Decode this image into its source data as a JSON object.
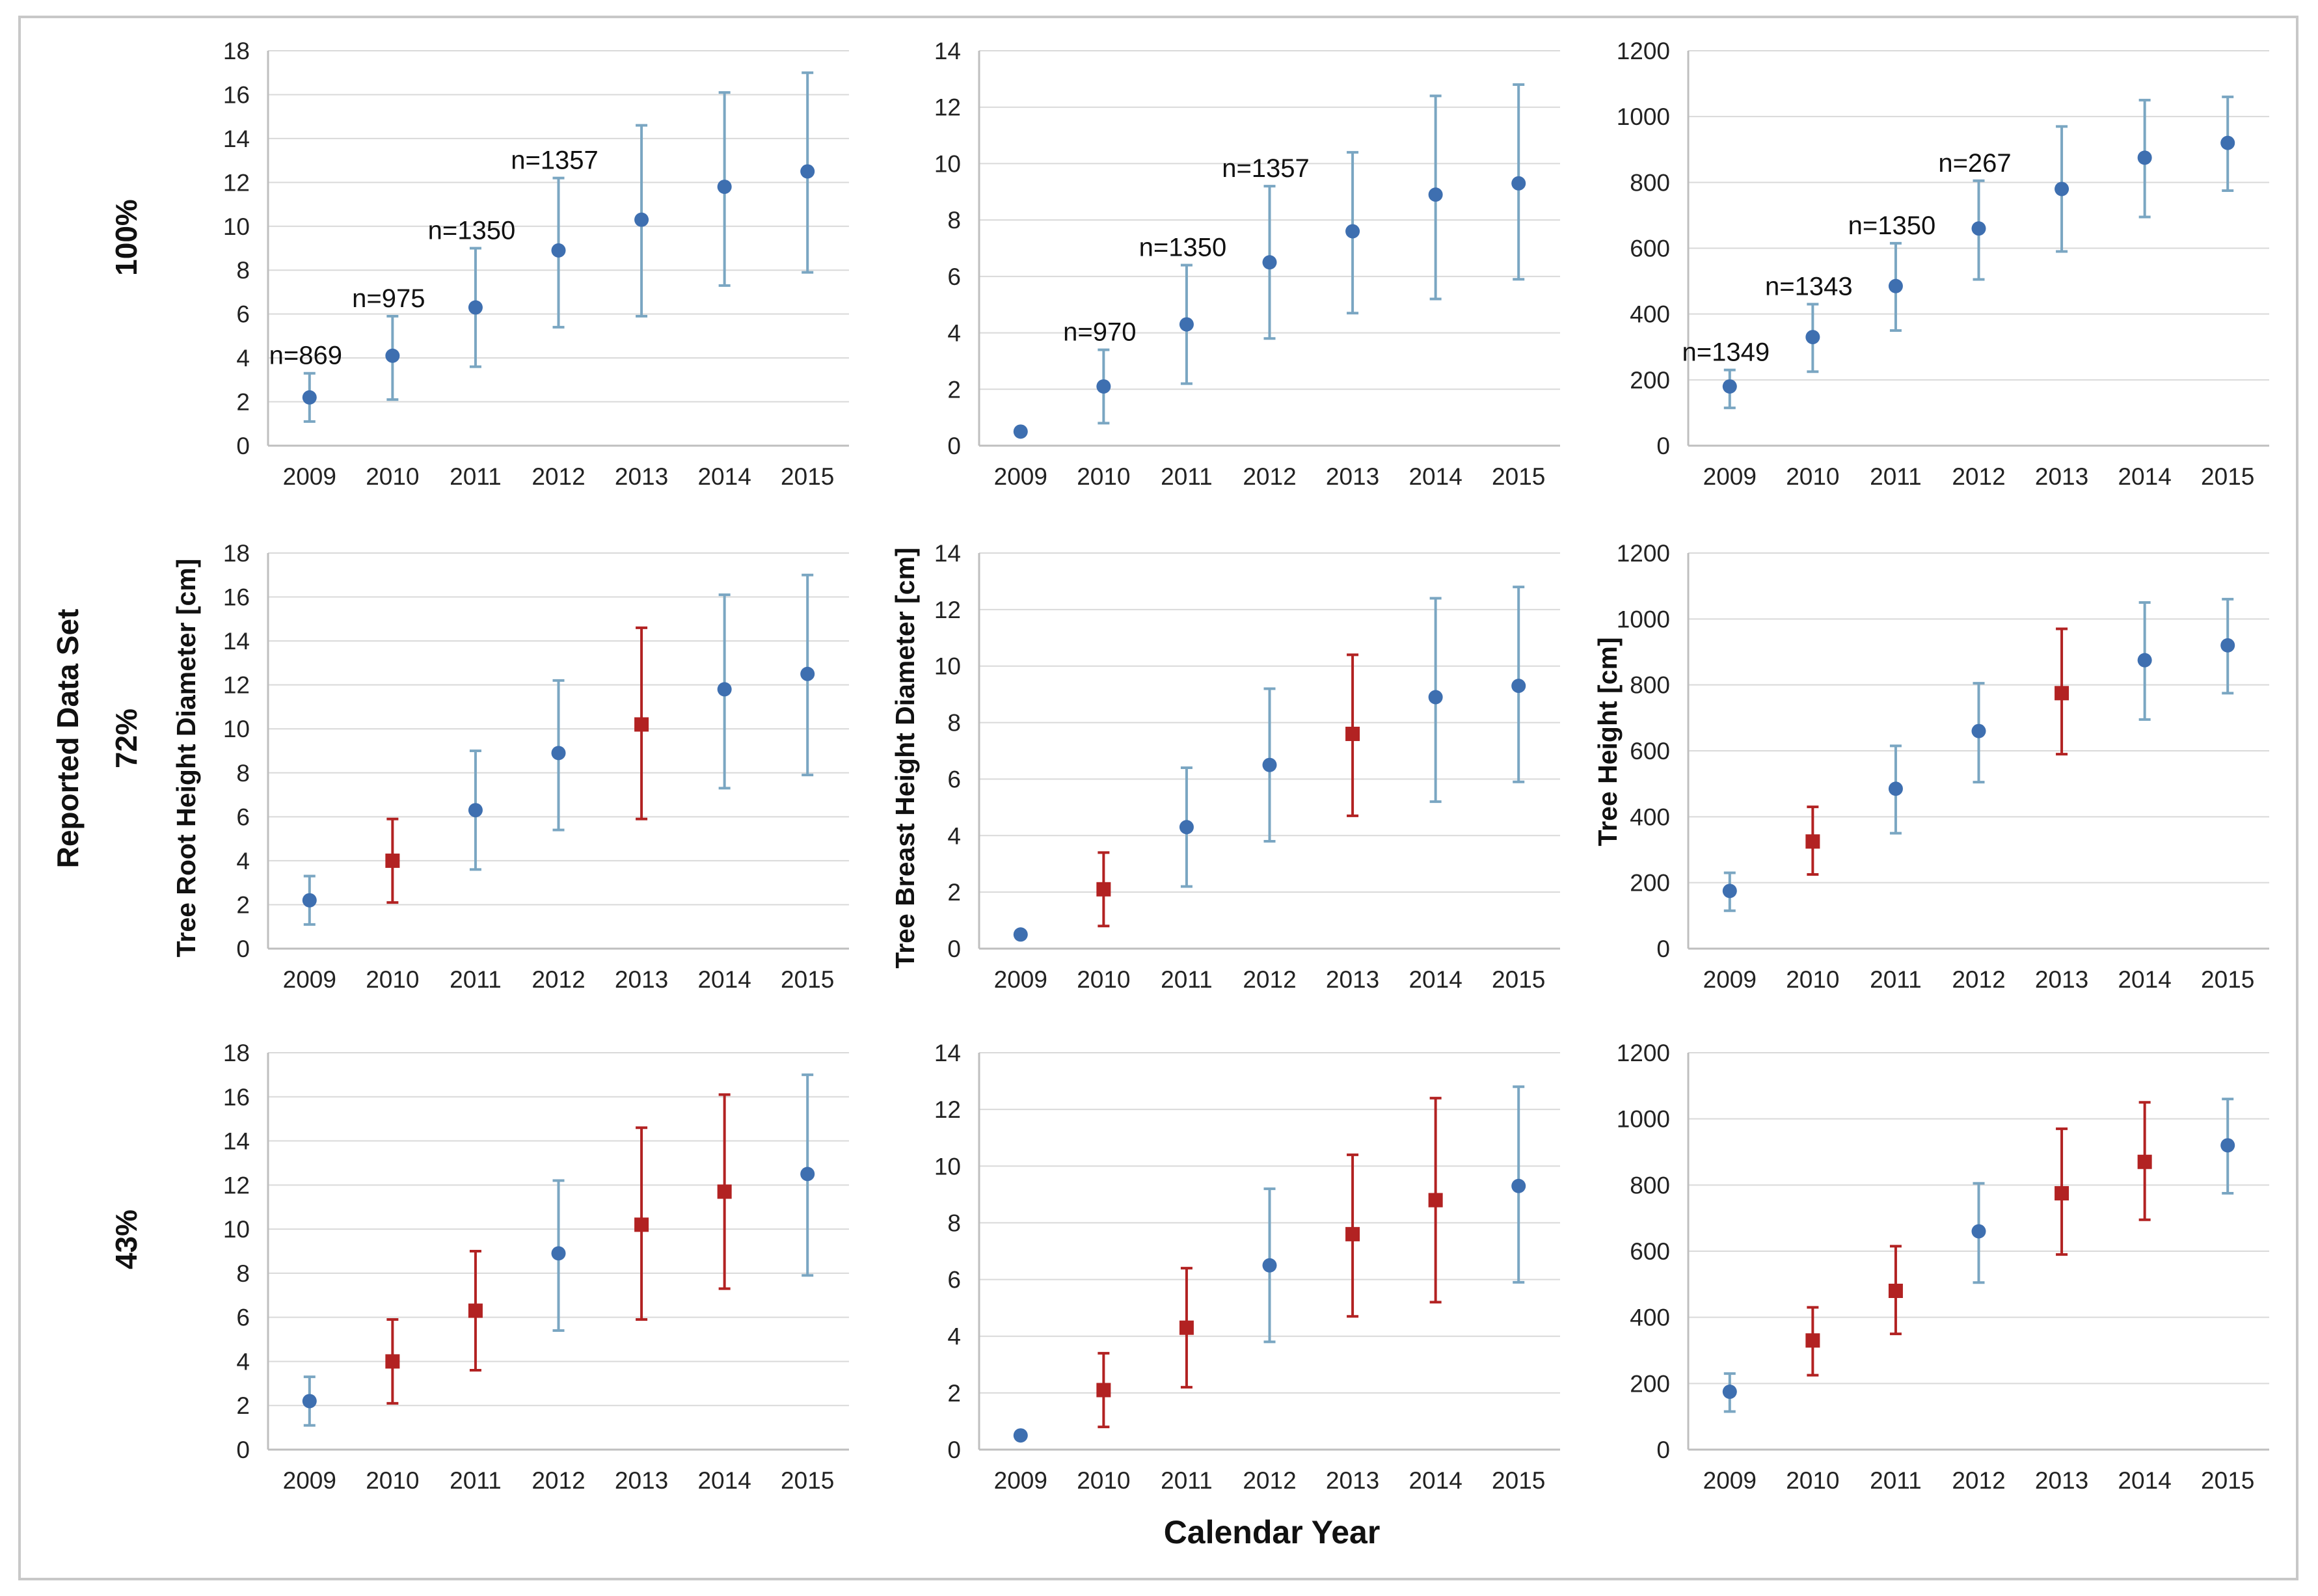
{
  "colors": {
    "grid": "#d9d9d9",
    "axis": "#bfbfbf",
    "normal_err": "#7aa6c2",
    "normal_marker": "#3e6fb0",
    "removed": "#b22222"
  },
  "labels": {
    "x_title": "Calendar Year",
    "dataset_title": "Reported Data Set",
    "rows": [
      "100%",
      "72%",
      "43%"
    ],
    "y_titles": [
      "Tree Root Height Diameter [cm]",
      "Tree Breast Height Diameter [cm]",
      "Tree Height [cm]"
    ]
  },
  "chart_data": [
    {
      "type": "scatter",
      "row": 0,
      "col": 0,
      "categories": [
        "2009",
        "2010",
        "2011",
        "2012",
        "2013",
        "2014",
        "2015"
      ],
      "ylim": [
        0,
        18
      ],
      "yticks": [
        0,
        2,
        4,
        6,
        8,
        10,
        12,
        14,
        16,
        18
      ],
      "values": [
        2.2,
        4.1,
        6.3,
        8.9,
        10.3,
        11.8,
        12.5
      ],
      "lower": [
        1.1,
        2.1,
        3.6,
        5.4,
        5.9,
        7.3,
        7.9
      ],
      "upper": [
        3.3,
        5.9,
        9.0,
        12.2,
        14.6,
        16.1,
        17.0
      ],
      "highlight": [
        false,
        false,
        false,
        false,
        false,
        false,
        false
      ],
      "annotations": [
        {
          "cat": 0,
          "text": "n=869"
        },
        {
          "cat": 1,
          "text": "n=975"
        },
        {
          "cat": 2,
          "text": "n=1350"
        },
        {
          "cat": 3,
          "text": "n=1357"
        }
      ]
    },
    {
      "type": "scatter",
      "row": 0,
      "col": 1,
      "categories": [
        "2009",
        "2010",
        "2011",
        "2012",
        "2013",
        "2014",
        "2015"
      ],
      "ylim": [
        0,
        14
      ],
      "yticks": [
        0,
        2,
        4,
        6,
        8,
        10,
        12,
        14
      ],
      "values": [
        0.5,
        2.1,
        4.3,
        6.5,
        7.6,
        8.9,
        9.3
      ],
      "lower": [
        null,
        0.8,
        2.2,
        3.8,
        4.7,
        5.2,
        5.9
      ],
      "upper": [
        null,
        3.4,
        6.4,
        9.2,
        10.4,
        12.4,
        12.8
      ],
      "highlight": [
        false,
        false,
        false,
        false,
        false,
        false,
        false
      ],
      "annotations": [
        {
          "cat": 1,
          "text": "n=970"
        },
        {
          "cat": 2,
          "text": "n=1350"
        },
        {
          "cat": 3,
          "text": "n=1357"
        }
      ]
    },
    {
      "type": "scatter",
      "row": 0,
      "col": 2,
      "categories": [
        "2009",
        "2010",
        "2011",
        "2012",
        "2013",
        "2014",
        "2015"
      ],
      "ylim": [
        0,
        1200
      ],
      "yticks": [
        0,
        200,
        400,
        600,
        800,
        1000,
        1200
      ],
      "values": [
        180,
        330,
        485,
        660,
        780,
        875,
        920
      ],
      "lower": [
        115,
        225,
        350,
        505,
        590,
        695,
        775
      ],
      "upper": [
        230,
        430,
        615,
        805,
        970,
        1050,
        1060
      ],
      "highlight": [
        false,
        false,
        false,
        false,
        false,
        false,
        false
      ],
      "annotations": [
        {
          "cat": 0,
          "text": "n=1349"
        },
        {
          "cat": 1,
          "text": "n=1343"
        },
        {
          "cat": 2,
          "text": "n=1350"
        },
        {
          "cat": 3,
          "text": "n=267"
        }
      ]
    },
    {
      "type": "scatter",
      "row": 1,
      "col": 0,
      "categories": [
        "2009",
        "2010",
        "2011",
        "2012",
        "2013",
        "2014",
        "2015"
      ],
      "ylim": [
        0,
        18
      ],
      "yticks": [
        0,
        2,
        4,
        6,
        8,
        10,
        12,
        14,
        16,
        18
      ],
      "values": [
        2.2,
        4.0,
        6.3,
        8.9,
        10.2,
        11.8,
        12.5
      ],
      "lower": [
        1.1,
        2.1,
        3.6,
        5.4,
        5.9,
        7.3,
        7.9
      ],
      "upper": [
        3.3,
        5.9,
        9.0,
        12.2,
        14.6,
        16.1,
        17.0
      ],
      "highlight": [
        false,
        true,
        false,
        false,
        true,
        false,
        false
      ],
      "annotations": []
    },
    {
      "type": "scatter",
      "row": 1,
      "col": 1,
      "categories": [
        "2009",
        "2010",
        "2011",
        "2012",
        "2013",
        "2014",
        "2015"
      ],
      "ylim": [
        0,
        14
      ],
      "yticks": [
        0,
        2,
        4,
        6,
        8,
        10,
        12,
        14
      ],
      "values": [
        0.5,
        2.1,
        4.3,
        6.5,
        7.6,
        8.9,
        9.3
      ],
      "lower": [
        null,
        0.8,
        2.2,
        3.8,
        4.7,
        5.2,
        5.9
      ],
      "upper": [
        null,
        3.4,
        6.4,
        9.2,
        10.4,
        12.4,
        12.8
      ],
      "highlight": [
        false,
        true,
        false,
        false,
        true,
        false,
        false
      ],
      "annotations": []
    },
    {
      "type": "scatter",
      "row": 1,
      "col": 2,
      "categories": [
        "2009",
        "2010",
        "2011",
        "2012",
        "2013",
        "2014",
        "2015"
      ],
      "ylim": [
        0,
        1200
      ],
      "yticks": [
        0,
        200,
        400,
        600,
        800,
        1000,
        1200
      ],
      "values": [
        175,
        325,
        485,
        660,
        775,
        875,
        920
      ],
      "lower": [
        115,
        225,
        350,
        505,
        590,
        695,
        775
      ],
      "upper": [
        230,
        430,
        615,
        805,
        970,
        1050,
        1060
      ],
      "highlight": [
        false,
        true,
        false,
        false,
        true,
        false,
        false
      ],
      "annotations": []
    },
    {
      "type": "scatter",
      "row": 2,
      "col": 0,
      "categories": [
        "2009",
        "2010",
        "2011",
        "2012",
        "2013",
        "2014",
        "2015"
      ],
      "ylim": [
        0,
        18
      ],
      "yticks": [
        0,
        2,
        4,
        6,
        8,
        10,
        12,
        14,
        16,
        18
      ],
      "values": [
        2.2,
        4.0,
        6.3,
        8.9,
        10.2,
        11.7,
        12.5
      ],
      "lower": [
        1.1,
        2.1,
        3.6,
        5.4,
        5.9,
        7.3,
        7.9
      ],
      "upper": [
        3.3,
        5.9,
        9.0,
        12.2,
        14.6,
        16.1,
        17.0
      ],
      "highlight": [
        false,
        true,
        true,
        false,
        true,
        true,
        false
      ],
      "annotations": []
    },
    {
      "type": "scatter",
      "row": 2,
      "col": 1,
      "categories": [
        "2009",
        "2010",
        "2011",
        "2012",
        "2013",
        "2014",
        "2015"
      ],
      "ylim": [
        0,
        14
      ],
      "yticks": [
        0,
        2,
        4,
        6,
        8,
        10,
        12,
        14
      ],
      "values": [
        0.5,
        2.1,
        4.3,
        6.5,
        7.6,
        8.8,
        9.3
      ],
      "lower": [
        null,
        0.8,
        2.2,
        3.8,
        4.7,
        5.2,
        5.9
      ],
      "upper": [
        null,
        3.4,
        6.4,
        9.2,
        10.4,
        12.4,
        12.8
      ],
      "highlight": [
        false,
        true,
        true,
        false,
        true,
        true,
        false
      ],
      "annotations": []
    },
    {
      "type": "scatter",
      "row": 2,
      "col": 2,
      "categories": [
        "2009",
        "2010",
        "2011",
        "2012",
        "2013",
        "2014",
        "2015"
      ],
      "ylim": [
        0,
        1200
      ],
      "yticks": [
        0,
        200,
        400,
        600,
        800,
        1000,
        1200
      ],
      "values": [
        175,
        330,
        480,
        660,
        775,
        870,
        920
      ],
      "lower": [
        115,
        225,
        350,
        505,
        590,
        695,
        775
      ],
      "upper": [
        230,
        430,
        615,
        805,
        970,
        1050,
        1060
      ],
      "highlight": [
        false,
        true,
        true,
        false,
        true,
        true,
        false
      ],
      "annotations": []
    }
  ]
}
